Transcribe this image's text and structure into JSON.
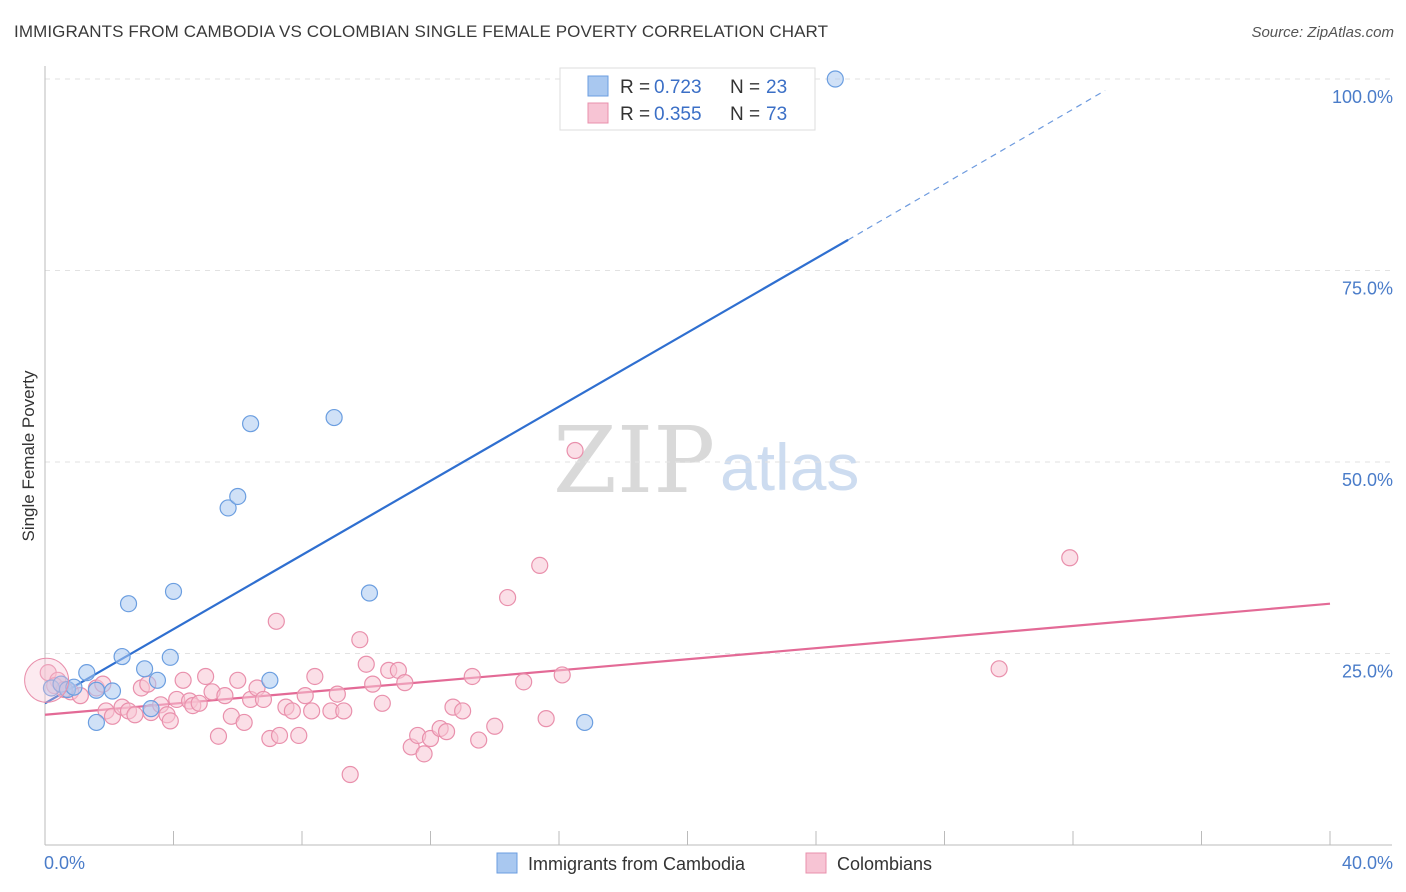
{
  "title": "IMMIGRANTS FROM CAMBODIA VS COLOMBIAN SINGLE FEMALE POVERTY CORRELATION CHART",
  "source": "Source: ZipAtlas.com",
  "watermark": {
    "zip": "ZIP",
    "atlas": "atlas"
  },
  "chart_data": {
    "type": "scatter",
    "title": "IMMIGRANTS FROM CAMBODIA VS COLOMBIAN SINGLE FEMALE POVERTY CORRELATION CHART",
    "xlabel": "",
    "ylabel": "Single Female Poverty",
    "xlim": [
      0,
      40
    ],
    "ylim": [
      0,
      100
    ],
    "x_tick_labels": [
      "0.0%",
      "40.0%"
    ],
    "y_ticks": [
      25,
      50,
      75,
      100
    ],
    "y_tick_labels": [
      "25.0%",
      "50.0%",
      "75.0%",
      "100.0%"
    ],
    "grid": true,
    "legend_position": "top-center",
    "series": [
      {
        "name": "Immigrants from Cambodia",
        "color": "#6b9ee0",
        "fill": "#a9c8f0",
        "line_color": "#2f6fd0",
        "R": "0.723",
        "N": "23",
        "trend": {
          "x0": 0,
          "y0": 18.5,
          "x1": 25,
          "y1": 79,
          "dash_x1": 33,
          "dash_y1": 98.5
        },
        "points": [
          [
            0.2,
            20.5
          ],
          [
            0.5,
            21
          ],
          [
            0.7,
            20.3
          ],
          [
            0.9,
            20.6
          ],
          [
            1.3,
            22.5
          ],
          [
            1.6,
            20.2
          ],
          [
            2.1,
            20.1
          ],
          [
            1.6,
            16
          ],
          [
            2.4,
            24.6
          ],
          [
            2.6,
            31.5
          ],
          [
            3.1,
            23
          ],
          [
            3.3,
            17.8
          ],
          [
            3.5,
            21.5
          ],
          [
            3.9,
            24.5
          ],
          [
            4.0,
            33.1
          ],
          [
            5.7,
            44
          ],
          [
            6.0,
            45.5
          ],
          [
            6.4,
            55
          ],
          [
            7.0,
            21.5
          ],
          [
            9.0,
            55.8
          ],
          [
            10.1,
            32.9
          ],
          [
            16.8,
            16
          ],
          [
            24.6,
            100
          ]
        ]
      },
      {
        "name": "Colombians",
        "color": "#e990ac",
        "fill": "#f7c4d4",
        "line_color": "#e36a96",
        "R": "0.355",
        "N": "73",
        "trend": {
          "x0": 0,
          "y0": 17,
          "x1": 40,
          "y1": 31.5
        },
        "points": [
          [
            0.1,
            22.5
          ],
          [
            0.4,
            21.5
          ],
          [
            0.8,
            20
          ],
          [
            1.1,
            19.5
          ],
          [
            1.6,
            20.5
          ],
          [
            1.8,
            21
          ],
          [
            1.9,
            17.5
          ],
          [
            2.1,
            16.8
          ],
          [
            2.4,
            18
          ],
          [
            2.6,
            17.5
          ],
          [
            2.8,
            17
          ],
          [
            3.0,
            20.5
          ],
          [
            3.2,
            21
          ],
          [
            3.3,
            17.3
          ],
          [
            3.6,
            18.3
          ],
          [
            3.8,
            17
          ],
          [
            3.9,
            16.2
          ],
          [
            4.1,
            19
          ],
          [
            4.3,
            21.5
          ],
          [
            4.5,
            18.8
          ],
          [
            4.6,
            18.2
          ],
          [
            4.8,
            18.5
          ],
          [
            5.0,
            22
          ],
          [
            5.2,
            20
          ],
          [
            5.4,
            14.2
          ],
          [
            5.6,
            19.5
          ],
          [
            5.8,
            16.8
          ],
          [
            6.0,
            21.5
          ],
          [
            6.2,
            16
          ],
          [
            6.4,
            19
          ],
          [
            6.6,
            20.5
          ],
          [
            6.8,
            19
          ],
          [
            7.0,
            13.9
          ],
          [
            7.2,
            29.2
          ],
          [
            7.3,
            14.3
          ],
          [
            7.5,
            18
          ],
          [
            7.7,
            17.5
          ],
          [
            7.9,
            14.3
          ],
          [
            8.1,
            19.5
          ],
          [
            8.3,
            17.5
          ],
          [
            8.4,
            22
          ],
          [
            8.9,
            17.5
          ],
          [
            9.1,
            19.7
          ],
          [
            9.3,
            17.5
          ],
          [
            9.5,
            9.2
          ],
          [
            9.8,
            26.8
          ],
          [
            10.0,
            23.6
          ],
          [
            10.2,
            21
          ],
          [
            10.5,
            18.5
          ],
          [
            10.7,
            22.8
          ],
          [
            11.0,
            22.8
          ],
          [
            11.2,
            21.2
          ],
          [
            11.4,
            12.8
          ],
          [
            11.6,
            14.3
          ],
          [
            11.8,
            11.9
          ],
          [
            12.0,
            13.9
          ],
          [
            12.3,
            15.2
          ],
          [
            12.5,
            14.8
          ],
          [
            12.7,
            18
          ],
          [
            13.0,
            17.5
          ],
          [
            13.3,
            22
          ],
          [
            13.5,
            13.7
          ],
          [
            14.0,
            15.5
          ],
          [
            14.4,
            32.3
          ],
          [
            14.9,
            21.3
          ],
          [
            15.4,
            36.5
          ],
          [
            15.6,
            16.5
          ],
          [
            16.1,
            22.2
          ],
          [
            16.5,
            51.5
          ],
          [
            29.7,
            23
          ],
          [
            31.9,
            37.5
          ],
          [
            0.3,
            20.8
          ],
          [
            0.6,
            20.3
          ]
        ]
      }
    ]
  }
}
